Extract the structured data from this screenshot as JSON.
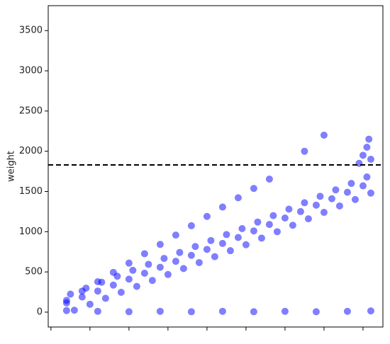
{
  "chart_data": {
    "type": "scatter",
    "ylabel": "weight",
    "color": "#0000ff",
    "x": [
      0.4,
      0.8,
      1.2,
      1.6,
      2.0,
      2.4,
      2.8,
      3.2,
      3.6,
      4.0,
      4.4,
      4.8,
      5.2,
      5.6,
      6.0,
      6.4,
      6.8,
      7.2,
      7.6,
      8.0,
      0.5,
      0.9,
      1.3,
      1.7,
      2.1,
      2.5,
      2.9,
      3.3,
      3.7,
      4.1,
      4.5,
      4.9,
      5.3,
      5.7,
      6.1,
      6.5,
      6.9,
      7.3,
      7.7,
      8.1,
      0.6,
      1.0,
      1.4,
      1.8,
      2.2,
      2.6,
      3.0,
      3.4,
      3.8,
      4.2,
      4.6,
      5.0,
      5.4,
      5.8,
      6.2,
      6.6,
      7.0,
      7.4,
      7.8,
      8.2,
      0.4,
      0.8,
      1.2,
      1.6,
      2.0,
      2.4,
      2.8,
      3.2,
      3.6,
      4.0,
      4.4,
      4.8,
      5.2,
      5.6,
      7.9,
      8.0,
      8.1,
      8.2,
      8.15,
      6.5,
      7.0,
      0.4,
      1.2,
      2.0,
      2.8,
      3.6,
      4.4,
      5.2,
      6.0,
      6.8,
      7.6,
      8.2
    ],
    "values": [
      114,
      188,
      262,
      336,
      410,
      484,
      558,
      632,
      706,
      780,
      854,
      928,
      1010,
      1090,
      1170,
      1250,
      1330,
      1410,
      1490,
      1570,
      224,
      298,
      372,
      446,
      520,
      594,
      668,
      742,
      816,
      890,
      964,
      1038,
      1120,
      1200,
      1280,
      1360,
      1440,
      1520,
      1600,
      1680,
      24,
      98,
      172,
      246,
      320,
      394,
      468,
      542,
      616,
      690,
      764,
      838,
      920,
      1000,
      1080,
      1160,
      1240,
      1320,
      1400,
      1480,
      146,
      262,
      378,
      494,
      610,
      726,
      842,
      958,
      1074,
      1190,
      1306,
      1422,
      1538,
      1654,
      1850,
      1950,
      2050,
      1900,
      2150,
      2000,
      2200,
      20,
      10,
      5,
      10,
      5,
      10,
      5,
      10,
      5,
      10,
      15
    ],
    "hline": 1830,
    "xlim": [
      -0.07,
      8.51
    ],
    "xticks": [
      0,
      1,
      2,
      3,
      4,
      5,
      6,
      7,
      8
    ],
    "ylim": [
      -185,
      3810
    ],
    "yticks": [
      0,
      500,
      1000,
      1500,
      2000,
      2500,
      3000,
      3500
    ]
  }
}
